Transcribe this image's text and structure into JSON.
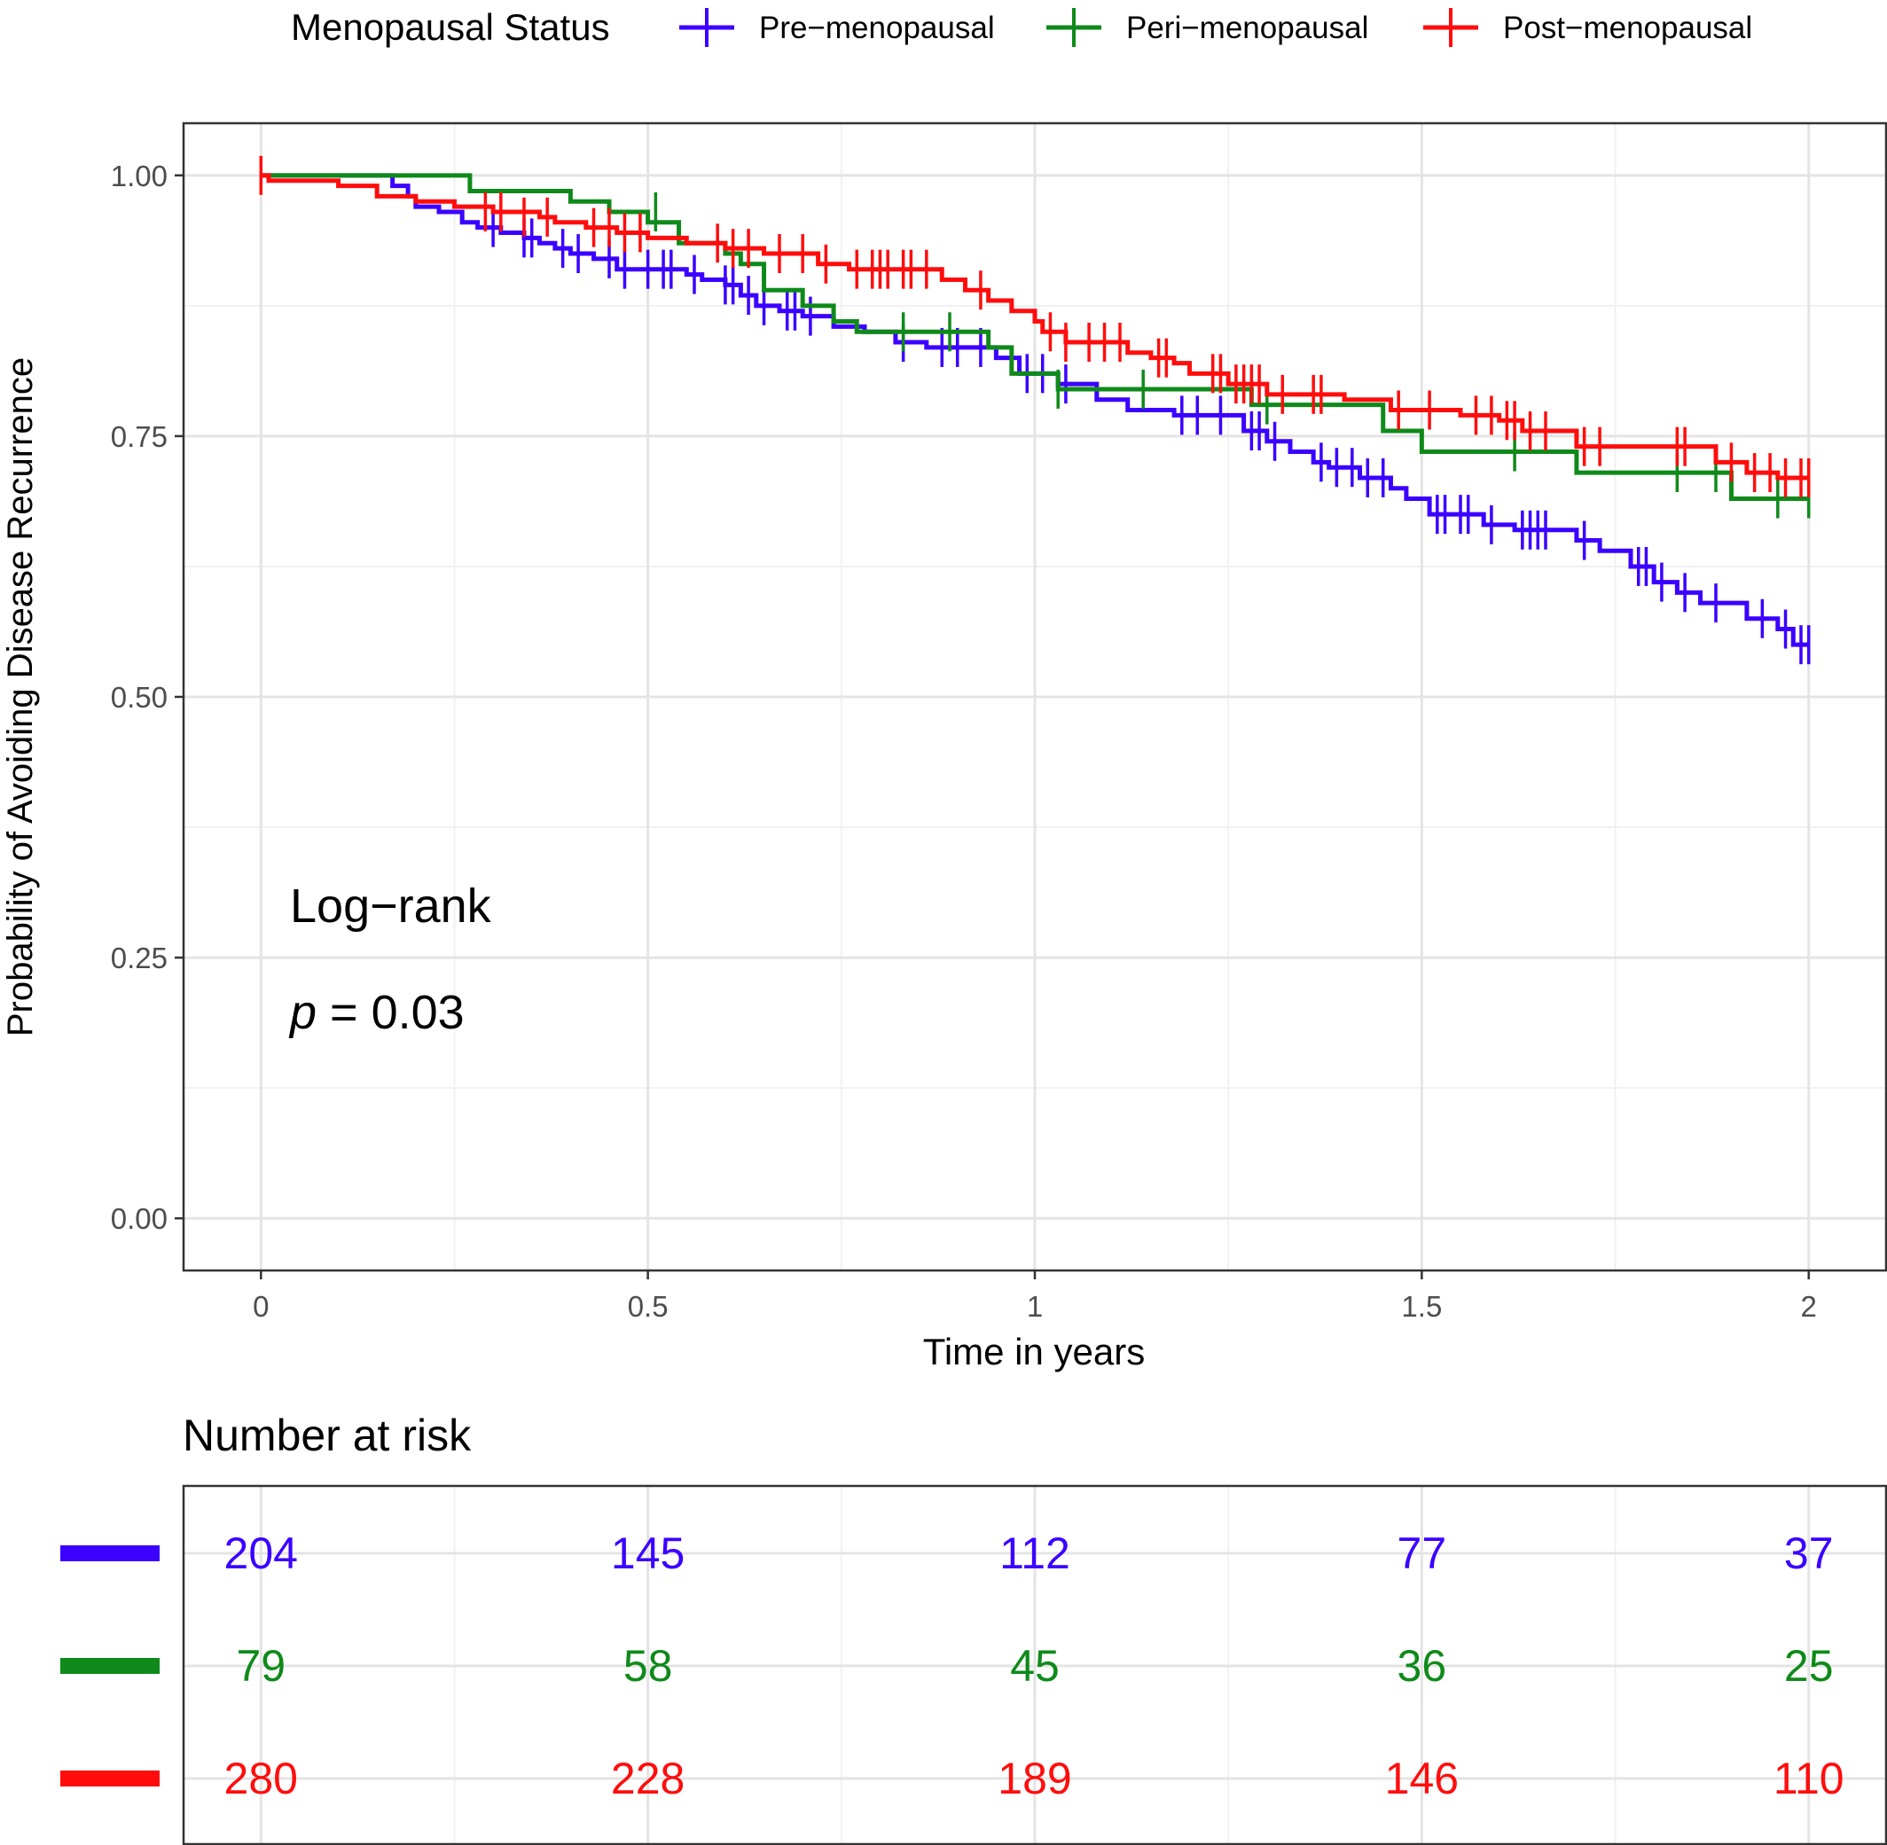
{
  "chart_data": {
    "type": "line",
    "subtype": "kaplan-meier",
    "xlabel": "Time in years",
    "ylabel": "Probability of Avoiding Disease Recurrence",
    "xlim": [
      -0.1,
      2.1
    ],
    "ylim": [
      -0.05,
      1.05
    ],
    "x_ticks": [
      0,
      0.5,
      1,
      1.5,
      2
    ],
    "x_tick_labels": [
      "0",
      "0.5",
      "1",
      "1.5",
      "2"
    ],
    "y_ticks": [
      0,
      0.25,
      0.5,
      0.75,
      1
    ],
    "y_tick_labels": [
      "0.00",
      "0.25",
      "0.50",
      "0.75",
      "1.00"
    ],
    "grid": true,
    "legend": {
      "title": "Menopausal Status",
      "position": "top",
      "entries": [
        "Pre−menopausal",
        "Peri−menopausal",
        "Post−menopausal"
      ]
    },
    "annotation": {
      "line1": "Log−rank",
      "p_symbol": "p",
      "p_rest": " = 0.03"
    },
    "series": [
      {
        "name": "Pre−menopausal",
        "color": "#3b00ff",
        "steps": [
          [
            0,
            1.0
          ],
          [
            0.17,
            0.99
          ],
          [
            0.19,
            0.98
          ],
          [
            0.2,
            0.97
          ],
          [
            0.23,
            0.965
          ],
          [
            0.26,
            0.955
          ],
          [
            0.28,
            0.95
          ],
          [
            0.31,
            0.945
          ],
          [
            0.34,
            0.94
          ],
          [
            0.36,
            0.935
          ],
          [
            0.38,
            0.93
          ],
          [
            0.4,
            0.925
          ],
          [
            0.43,
            0.92
          ],
          [
            0.46,
            0.91
          ],
          [
            0.55,
            0.905
          ],
          [
            0.57,
            0.9
          ],
          [
            0.6,
            0.895
          ],
          [
            0.62,
            0.885
          ],
          [
            0.64,
            0.875
          ],
          [
            0.67,
            0.87
          ],
          [
            0.7,
            0.865
          ],
          [
            0.74,
            0.855
          ],
          [
            0.78,
            0.85
          ],
          [
            0.82,
            0.84
          ],
          [
            0.86,
            0.835
          ],
          [
            0.95,
            0.825
          ],
          [
            0.98,
            0.81
          ],
          [
            1.03,
            0.8
          ],
          [
            1.08,
            0.785
          ],
          [
            1.12,
            0.775
          ],
          [
            1.18,
            0.77
          ],
          [
            1.27,
            0.755
          ],
          [
            1.3,
            0.745
          ],
          [
            1.33,
            0.735
          ],
          [
            1.36,
            0.725
          ],
          [
            1.38,
            0.72
          ],
          [
            1.42,
            0.71
          ],
          [
            1.46,
            0.7
          ],
          [
            1.48,
            0.69
          ],
          [
            1.51,
            0.675
          ],
          [
            1.58,
            0.665
          ],
          [
            1.62,
            0.66
          ],
          [
            1.7,
            0.65
          ],
          [
            1.73,
            0.64
          ],
          [
            1.77,
            0.625
          ],
          [
            1.8,
            0.61
          ],
          [
            1.83,
            0.6
          ],
          [
            1.86,
            0.59
          ],
          [
            1.92,
            0.575
          ],
          [
            1.96,
            0.565
          ],
          [
            1.98,
            0.55
          ]
        ],
        "end": 2.0,
        "censors": [
          [
            0.3,
            0.95
          ],
          [
            0.34,
            0.94
          ],
          [
            0.35,
            0.94
          ],
          [
            0.39,
            0.93
          ],
          [
            0.41,
            0.925
          ],
          [
            0.45,
            0.92
          ],
          [
            0.47,
            0.91
          ],
          [
            0.5,
            0.91
          ],
          [
            0.52,
            0.91
          ],
          [
            0.53,
            0.91
          ],
          [
            0.56,
            0.905
          ],
          [
            0.6,
            0.895
          ],
          [
            0.61,
            0.895
          ],
          [
            0.63,
            0.885
          ],
          [
            0.65,
            0.875
          ],
          [
            0.68,
            0.87
          ],
          [
            0.69,
            0.87
          ],
          [
            0.71,
            0.865
          ],
          [
            0.83,
            0.84
          ],
          [
            0.88,
            0.835
          ],
          [
            0.9,
            0.835
          ],
          [
            0.93,
            0.835
          ],
          [
            0.99,
            0.81
          ],
          [
            1.01,
            0.81
          ],
          [
            1.04,
            0.8
          ],
          [
            1.19,
            0.77
          ],
          [
            1.21,
            0.77
          ],
          [
            1.24,
            0.77
          ],
          [
            1.28,
            0.755
          ],
          [
            1.29,
            0.755
          ],
          [
            1.31,
            0.745
          ],
          [
            1.37,
            0.725
          ],
          [
            1.39,
            0.72
          ],
          [
            1.41,
            0.72
          ],
          [
            1.43,
            0.71
          ],
          [
            1.45,
            0.71
          ],
          [
            1.52,
            0.675
          ],
          [
            1.53,
            0.675
          ],
          [
            1.55,
            0.675
          ],
          [
            1.56,
            0.675
          ],
          [
            1.59,
            0.665
          ],
          [
            1.63,
            0.66
          ],
          [
            1.64,
            0.66
          ],
          [
            1.65,
            0.66
          ],
          [
            1.66,
            0.66
          ],
          [
            1.71,
            0.65
          ],
          [
            1.78,
            0.625
          ],
          [
            1.79,
            0.625
          ],
          [
            1.81,
            0.61
          ],
          [
            1.84,
            0.6
          ],
          [
            1.88,
            0.59
          ],
          [
            1.94,
            0.575
          ],
          [
            1.97,
            0.565
          ],
          [
            1.99,
            0.55
          ],
          [
            2.0,
            0.55
          ]
        ]
      },
      {
        "name": "Peri−menopausal",
        "color": "#0f8a1a",
        "steps": [
          [
            0,
            1.0
          ],
          [
            0.27,
            0.985
          ],
          [
            0.4,
            0.975
          ],
          [
            0.45,
            0.965
          ],
          [
            0.5,
            0.955
          ],
          [
            0.54,
            0.935
          ],
          [
            0.6,
            0.925
          ],
          [
            0.62,
            0.915
          ],
          [
            0.65,
            0.89
          ],
          [
            0.7,
            0.875
          ],
          [
            0.74,
            0.86
          ],
          [
            0.77,
            0.85
          ],
          [
            0.94,
            0.835
          ],
          [
            0.97,
            0.81
          ],
          [
            1.03,
            0.795
          ],
          [
            1.28,
            0.78
          ],
          [
            1.45,
            0.755
          ],
          [
            1.5,
            0.735
          ],
          [
            1.7,
            0.715
          ],
          [
            1.9,
            0.69
          ]
        ],
        "end": 2.0,
        "censors": [
          [
            0.51,
            0.965
          ],
          [
            0.83,
            0.85
          ],
          [
            0.89,
            0.85
          ],
          [
            1.03,
            0.795
          ],
          [
            1.14,
            0.795
          ],
          [
            1.3,
            0.78
          ],
          [
            1.62,
            0.735
          ],
          [
            1.83,
            0.715
          ],
          [
            1.88,
            0.715
          ],
          [
            1.96,
            0.69
          ],
          [
            2.0,
            0.69
          ]
        ]
      },
      {
        "name": "Post−menopausal",
        "color": "#ff0d0d",
        "steps": [
          [
            0,
            1.0
          ],
          [
            0.01,
            0.995
          ],
          [
            0.1,
            0.99
          ],
          [
            0.15,
            0.98
          ],
          [
            0.2,
            0.975
          ],
          [
            0.25,
            0.97
          ],
          [
            0.3,
            0.965
          ],
          [
            0.36,
            0.96
          ],
          [
            0.38,
            0.955
          ],
          [
            0.42,
            0.95
          ],
          [
            0.46,
            0.945
          ],
          [
            0.5,
            0.94
          ],
          [
            0.55,
            0.935
          ],
          [
            0.6,
            0.93
          ],
          [
            0.65,
            0.925
          ],
          [
            0.72,
            0.915
          ],
          [
            0.76,
            0.91
          ],
          [
            0.88,
            0.9
          ],
          [
            0.91,
            0.89
          ],
          [
            0.94,
            0.88
          ],
          [
            0.97,
            0.87
          ],
          [
            1.0,
            0.86
          ],
          [
            1.01,
            0.85
          ],
          [
            1.04,
            0.84
          ],
          [
            1.12,
            0.83
          ],
          [
            1.15,
            0.825
          ],
          [
            1.18,
            0.82
          ],
          [
            1.2,
            0.81
          ],
          [
            1.25,
            0.8
          ],
          [
            1.3,
            0.79
          ],
          [
            1.4,
            0.785
          ],
          [
            1.46,
            0.775
          ],
          [
            1.55,
            0.77
          ],
          [
            1.6,
            0.765
          ],
          [
            1.63,
            0.755
          ],
          [
            1.7,
            0.74
          ],
          [
            1.88,
            0.725
          ],
          [
            1.92,
            0.715
          ],
          [
            1.96,
            0.71
          ]
        ],
        "end": 2.0,
        "censors": [
          [
            0,
            1.0
          ],
          [
            0.29,
            0.965
          ],
          [
            0.31,
            0.965
          ],
          [
            0.34,
            0.96
          ],
          [
            0.37,
            0.96
          ],
          [
            0.43,
            0.95
          ],
          [
            0.45,
            0.95
          ],
          [
            0.47,
            0.945
          ],
          [
            0.49,
            0.945
          ],
          [
            0.59,
            0.935
          ],
          [
            0.61,
            0.93
          ],
          [
            0.63,
            0.93
          ],
          [
            0.67,
            0.925
          ],
          [
            0.7,
            0.925
          ],
          [
            0.73,
            0.915
          ],
          [
            0.77,
            0.91
          ],
          [
            0.79,
            0.91
          ],
          [
            0.8,
            0.91
          ],
          [
            0.81,
            0.91
          ],
          [
            0.83,
            0.91
          ],
          [
            0.84,
            0.91
          ],
          [
            0.86,
            0.91
          ],
          [
            0.93,
            0.89
          ],
          [
            1.02,
            0.85
          ],
          [
            1.04,
            0.84
          ],
          [
            1.07,
            0.84
          ],
          [
            1.09,
            0.84
          ],
          [
            1.11,
            0.84
          ],
          [
            1.16,
            0.825
          ],
          [
            1.17,
            0.825
          ],
          [
            1.23,
            0.81
          ],
          [
            1.24,
            0.81
          ],
          [
            1.26,
            0.8
          ],
          [
            1.27,
            0.8
          ],
          [
            1.28,
            0.8
          ],
          [
            1.29,
            0.8
          ],
          [
            1.32,
            0.79
          ],
          [
            1.36,
            0.79
          ],
          [
            1.37,
            0.79
          ],
          [
            1.47,
            0.775
          ],
          [
            1.51,
            0.775
          ],
          [
            1.57,
            0.77
          ],
          [
            1.59,
            0.77
          ],
          [
            1.61,
            0.765
          ],
          [
            1.62,
            0.765
          ],
          [
            1.64,
            0.755
          ],
          [
            1.66,
            0.755
          ],
          [
            1.71,
            0.74
          ],
          [
            1.73,
            0.74
          ],
          [
            1.83,
            0.74
          ],
          [
            1.84,
            0.74
          ],
          [
            1.9,
            0.725
          ],
          [
            1.93,
            0.715
          ],
          [
            1.95,
            0.715
          ],
          [
            1.97,
            0.71
          ],
          [
            1.99,
            0.71
          ],
          [
            2.0,
            0.71
          ]
        ]
      }
    ],
    "risk_table": {
      "title": "Number at risk",
      "times": [
        0,
        0.5,
        1,
        1.5,
        2
      ],
      "rows": [
        {
          "name": "Pre−menopausal",
          "color": "#3b00ff",
          "values": [
            "204",
            "145",
            "112",
            "77",
            "37"
          ]
        },
        {
          "name": "Peri−menopausal",
          "color": "#0f8a1a",
          "values": [
            "79",
            "58",
            "45",
            "36",
            "25"
          ]
        },
        {
          "name": "Post−menopausal",
          "color": "#ff0d0d",
          "values": [
            "280",
            "228",
            "189",
            "146",
            "110"
          ]
        }
      ]
    }
  }
}
